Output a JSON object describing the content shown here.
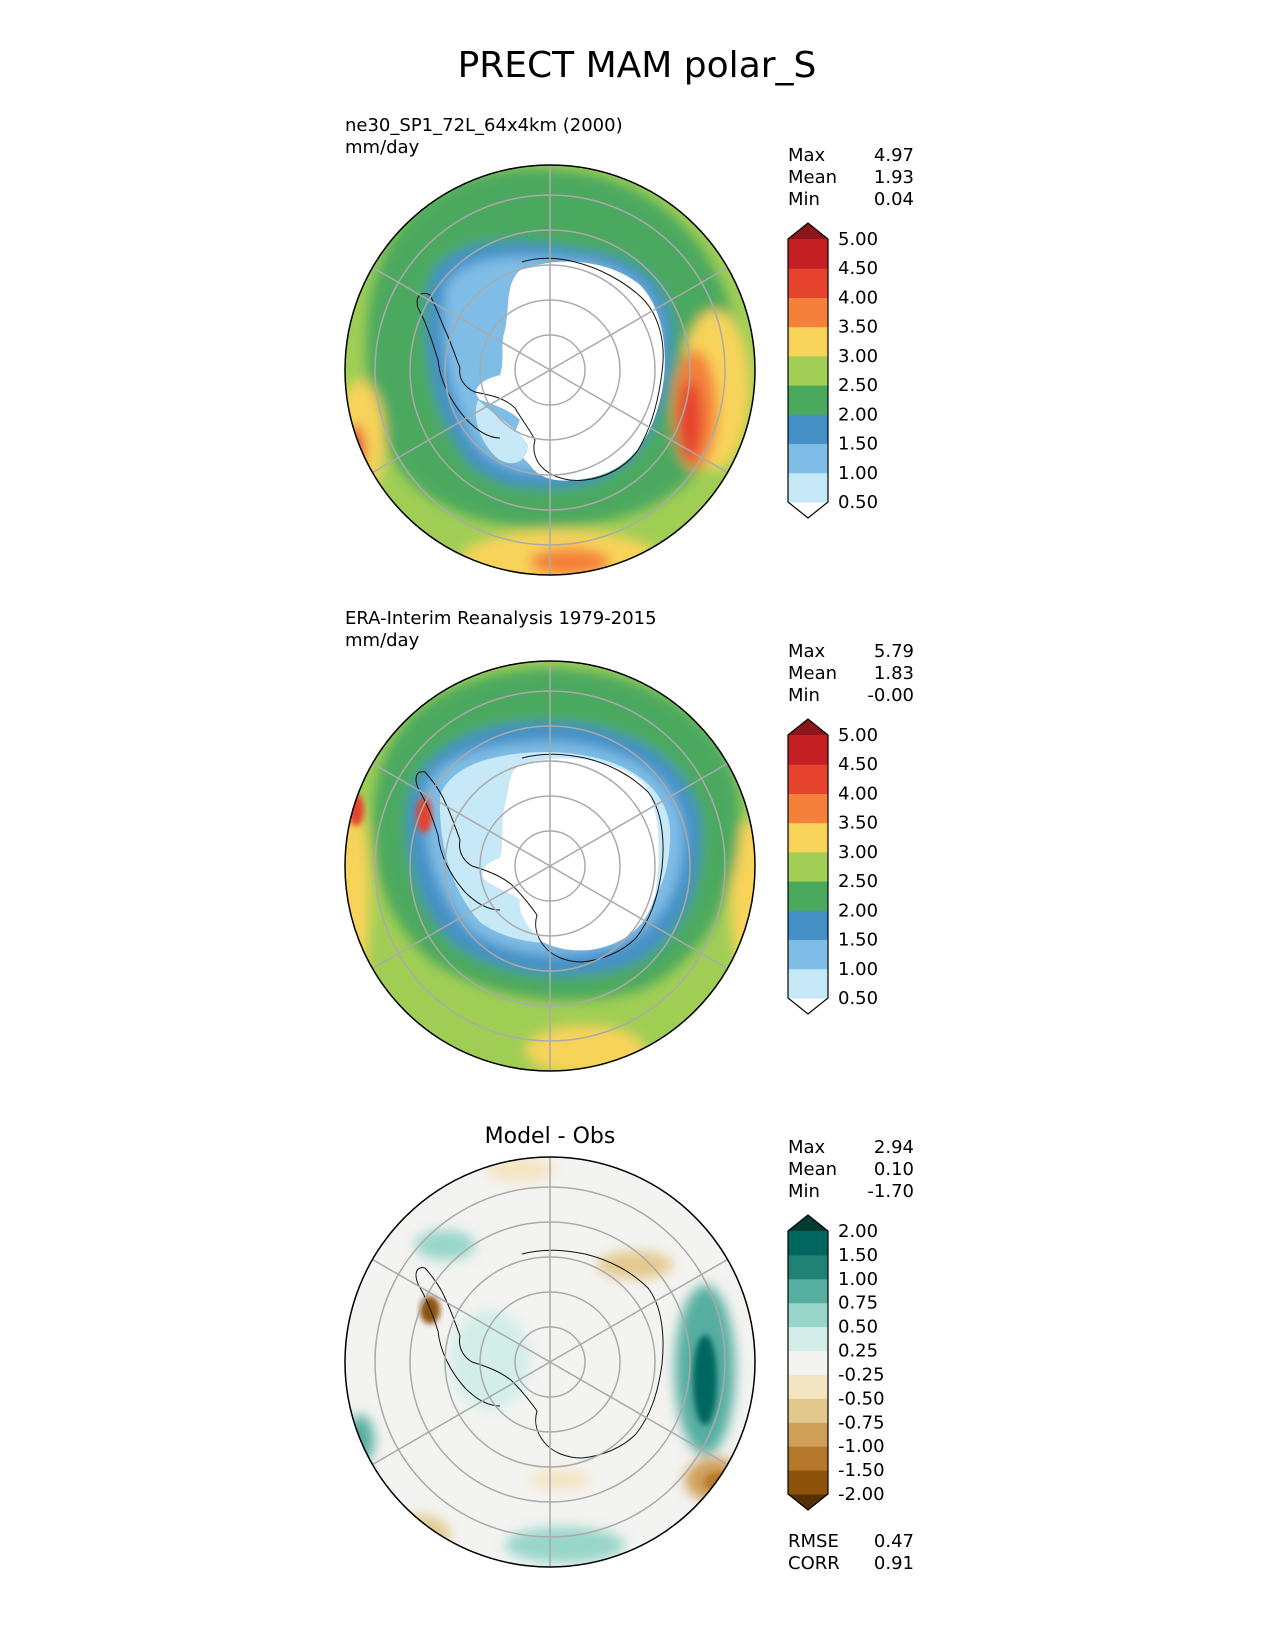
{
  "chart_data": {
    "type": "map",
    "title": "PRECT MAM polar_S",
    "panels": [
      {
        "id": "model",
        "title": "ne30_SP1_72L_64x4km (2000)",
        "units": "mm/day",
        "stats": {
          "max_label": "Max",
          "max": "4.97",
          "mean_label": "Mean",
          "mean": "1.93",
          "min_label": "Min",
          "min": "0.04"
        },
        "colorbar": {
          "ticks": [
            "0.50",
            "1.00",
            "1.50",
            "2.00",
            "2.50",
            "3.00",
            "3.50",
            "4.00",
            "4.50",
            "5.00"
          ],
          "colors": [
            "#ffffff",
            "#c6e8f7",
            "#7fbde6",
            "#4490c7",
            "#4ba95f",
            "#a0ce55",
            "#f8d35a",
            "#f5803a",
            "#e5432e",
            "#c31f24",
            "#8b1519"
          ]
        }
      },
      {
        "id": "obs",
        "title": "ERA-Interim Reanalysis 1979-2015",
        "units": "mm/day",
        "stats": {
          "max_label": "Max",
          "max": "5.79",
          "mean_label": "Mean",
          "mean": "1.83",
          "min_label": "Min",
          "min": "-0.00"
        },
        "colorbar": {
          "ticks": [
            "0.50",
            "1.00",
            "1.50",
            "2.00",
            "2.50",
            "3.00",
            "3.50",
            "4.00",
            "4.50",
            "5.00"
          ],
          "colors": [
            "#ffffff",
            "#c6e8f7",
            "#7fbde6",
            "#4490c7",
            "#4ba95f",
            "#a0ce55",
            "#f8d35a",
            "#f5803a",
            "#e5432e",
            "#c31f24",
            "#8b1519"
          ]
        }
      },
      {
        "id": "diff",
        "title": "Model - Obs",
        "units": "",
        "stats": {
          "max_label": "Max",
          "max": "2.94",
          "mean_label": "Mean",
          "mean": "0.10",
          "min_label": "Min",
          "min": "-1.70"
        },
        "colorbar": {
          "ticks": [
            "-2.00",
            "-1.50",
            "-1.00",
            "-0.75",
            "-0.50",
            "-0.25",
            "0.25",
            "0.50",
            "0.75",
            "1.00",
            "1.50",
            "2.00"
          ],
          "colors": [
            "#543005",
            "#8c510a",
            "#b5782a",
            "#cf9f58",
            "#e3c98d",
            "#f4e5c3",
            "#f3f3f1",
            "#d3eee8",
            "#97d6c9",
            "#55aea0",
            "#1f8274",
            "#01665e",
            "#003c30"
          ]
        },
        "metrics": {
          "rmse_label": "RMSE",
          "rmse": "0.47",
          "corr_label": "CORR",
          "corr": "0.91"
        }
      }
    ]
  }
}
